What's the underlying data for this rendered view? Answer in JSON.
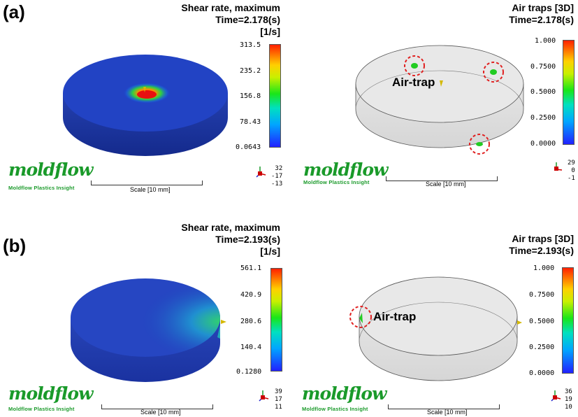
{
  "panels": [
    {
      "label": "(a)",
      "shear": {
        "title_lines": [
          "Shear rate, maximum",
          "Time=2.178(s)",
          "[1/s]"
        ],
        "scale_ticks": [
          "313.5",
          "235.2",
          "156.8",
          "78.43",
          "0.0643"
        ],
        "triad": [
          "32",
          "-17",
          "-13"
        ]
      },
      "air": {
        "title_lines": [
          "Air traps [3D]",
          "Time=2.178(s)"
        ],
        "scale_ticks": [
          "1.000",
          "0.7500",
          "0.5000",
          "0.2500",
          "0.0000"
        ],
        "triad": [
          "29",
          "0",
          "-1"
        ],
        "annotation": "Air-trap"
      }
    },
    {
      "label": "(b)",
      "shear": {
        "title_lines": [
          "Shear rate, maximum",
          "Time=2.193(s)",
          "[1/s]"
        ],
        "scale_ticks": [
          "561.1",
          "420.9",
          "280.6",
          "140.4",
          "0.1280"
        ],
        "triad": [
          "39",
          "17",
          "11"
        ]
      },
      "air": {
        "title_lines": [
          "Air traps [3D]",
          "Time=2.193(s)"
        ],
        "scale_ticks": [
          "1.000",
          "0.7500",
          "0.5000",
          "0.2500",
          "0.0000"
        ],
        "triad": [
          "36",
          "19",
          "10"
        ],
        "annotation": "Air-trap"
      }
    }
  ],
  "branding": {
    "logo": "moldflow",
    "subtitle": "Moldflow Plastics Insight",
    "scale_label": "Scale [10 mm]"
  },
  "colors": {
    "logo": "#1a9a2a",
    "disk_blue": "#1e3cc8",
    "air_trap_circle": "#e02020",
    "air_trap_marker": "#22cc22",
    "injection_point": "#d4b800"
  }
}
